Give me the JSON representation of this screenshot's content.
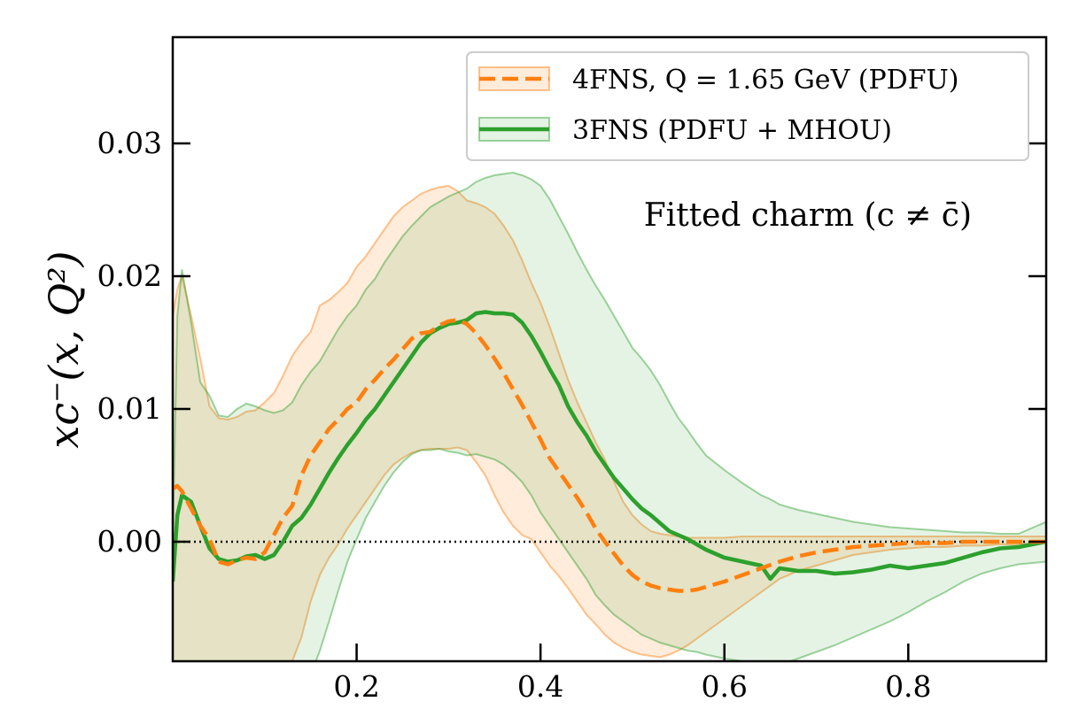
{
  "chart_data": {
    "type": "line",
    "ylabel": "xc⁻(x, Q²)",
    "annotation": "Fitted charm (c ≠ c̄)",
    "xlim": [
      0.0,
      0.95
    ],
    "ylim": [
      -0.009,
      0.038
    ],
    "xticks": [
      0.2,
      0.4,
      0.6,
      0.8
    ],
    "xtick_labels": [
      "0.2",
      "0.4",
      "0.6",
      "0.8"
    ],
    "yticks": [
      0.0,
      0.01,
      0.02,
      0.03
    ],
    "ytick_labels": [
      "0.00",
      "0.01",
      "0.02",
      "0.03"
    ],
    "legend_position": "top-right",
    "zero_line": true,
    "series": [
      {
        "name": "4FNS, Q = 1.65 GeV (PDFU)",
        "color": "#ff7f0e",
        "style": "dashed",
        "x": [
          0.0,
          0.005,
          0.01,
          0.02,
          0.03,
          0.04,
          0.05,
          0.06,
          0.07,
          0.08,
          0.09,
          0.1,
          0.11,
          0.12,
          0.13,
          0.14,
          0.15,
          0.16,
          0.17,
          0.18,
          0.19,
          0.2,
          0.21,
          0.22,
          0.23,
          0.24,
          0.25,
          0.26,
          0.27,
          0.28,
          0.29,
          0.3,
          0.31,
          0.32,
          0.33,
          0.34,
          0.35,
          0.36,
          0.37,
          0.38,
          0.39,
          0.4,
          0.41,
          0.42,
          0.43,
          0.44,
          0.45,
          0.46,
          0.47,
          0.48,
          0.49,
          0.5,
          0.51,
          0.52,
          0.53,
          0.54,
          0.55,
          0.56,
          0.57,
          0.58,
          0.6,
          0.62,
          0.64,
          0.66,
          0.68,
          0.7,
          0.72,
          0.74,
          0.76,
          0.78,
          0.8,
          0.82,
          0.84,
          0.86,
          0.88,
          0.9,
          0.92,
          0.95
        ],
        "y": [
          0.004,
          0.0042,
          0.0038,
          0.0025,
          0.0012,
          0.0002,
          -0.0015,
          -0.0017,
          -0.0014,
          -0.0012,
          -0.0013,
          -0.0008,
          0.0005,
          0.0018,
          0.0027,
          0.005,
          0.0065,
          0.0075,
          0.0085,
          0.0092,
          0.01,
          0.0105,
          0.0115,
          0.0122,
          0.013,
          0.0137,
          0.0145,
          0.0153,
          0.0157,
          0.0158,
          0.0163,
          0.0166,
          0.0167,
          0.0164,
          0.0157,
          0.0148,
          0.0138,
          0.0127,
          0.0115,
          0.0103,
          0.009,
          0.0077,
          0.0063,
          0.0053,
          0.0043,
          0.0033,
          0.0022,
          0.001,
          0.0,
          -0.0009,
          -0.0018,
          -0.0025,
          -0.003,
          -0.0033,
          -0.0035,
          -0.0036,
          -0.0037,
          -0.0037,
          -0.0036,
          -0.0034,
          -0.003,
          -0.0025,
          -0.002,
          -0.0015,
          -0.0011,
          -0.0008,
          -0.0006,
          -0.0004,
          -0.0003,
          -0.0002,
          -0.0001,
          -0.0001,
          -0.0001,
          0.0,
          0.0,
          0.0,
          0.0,
          0.0
        ],
        "band_upper": [
          0.017,
          0.019,
          0.02,
          0.017,
          0.0138,
          0.0102,
          0.0093,
          0.0092,
          0.0094,
          0.0098,
          0.0099,
          0.0105,
          0.0112,
          0.0125,
          0.014,
          0.015,
          0.0158,
          0.0178,
          0.0182,
          0.0188,
          0.0195,
          0.0207,
          0.0215,
          0.0225,
          0.0235,
          0.0245,
          0.0252,
          0.0257,
          0.0262,
          0.0265,
          0.0267,
          0.0268,
          0.0264,
          0.0257,
          0.0255,
          0.0252,
          0.0247,
          0.0238,
          0.0227,
          0.0212,
          0.0195,
          0.018,
          0.0162,
          0.0142,
          0.0122,
          0.0105,
          0.009,
          0.0075,
          0.0062,
          0.0045,
          0.003,
          0.002,
          0.0013,
          0.0008,
          0.0006,
          0.0005,
          0.0004,
          0.0003,
          0.0003,
          0.0003,
          0.0003,
          0.0004,
          0.0004,
          0.0004,
          0.0004,
          0.0004,
          0.0004,
          0.0004,
          0.0004,
          0.0004,
          0.0004,
          0.0004,
          0.0004,
          0.0004,
          0.0004,
          0.0004,
          0.0004,
          0.0004
        ],
        "band_lower": [
          -0.009,
          -0.012,
          -0.012,
          -0.012,
          -0.012,
          -0.012,
          -0.012,
          -0.012,
          -0.012,
          -0.012,
          -0.0105,
          -0.0098,
          -0.0095,
          -0.009,
          -0.009,
          -0.0072,
          -0.0045,
          -0.0025,
          -0.0012,
          -0.0002,
          0.001,
          0.002,
          0.003,
          0.004,
          0.005,
          0.0058,
          0.0063,
          0.0067,
          0.0069,
          0.007,
          0.007,
          0.007,
          0.0071,
          0.0069,
          0.006,
          0.005,
          0.0035,
          0.0022,
          0.0012,
          0.0005,
          0.0002,
          -0.0008,
          -0.0018,
          -0.0026,
          -0.0035,
          -0.0045,
          -0.0055,
          -0.0062,
          -0.007,
          -0.0076,
          -0.008,
          -0.0083,
          -0.0085,
          -0.0086,
          -0.0087,
          -0.0085,
          -0.0082,
          -0.0078,
          -0.0073,
          -0.0068,
          -0.0058,
          -0.0048,
          -0.0038,
          -0.0028,
          -0.0022,
          -0.0018,
          -0.0014,
          -0.001,
          -0.0008,
          -0.0006,
          -0.0005,
          -0.0004,
          -0.0004,
          -0.0003,
          -0.0003,
          -0.0002,
          -0.0002,
          -0.0001
        ]
      },
      {
        "name": "3FNS (PDFU + MHOU)",
        "color": "#2ca02c",
        "style": "solid",
        "x": [
          0.0,
          0.005,
          0.01,
          0.02,
          0.03,
          0.04,
          0.05,
          0.06,
          0.07,
          0.08,
          0.09,
          0.1,
          0.11,
          0.12,
          0.13,
          0.14,
          0.15,
          0.16,
          0.17,
          0.18,
          0.19,
          0.2,
          0.21,
          0.22,
          0.23,
          0.24,
          0.25,
          0.26,
          0.27,
          0.28,
          0.29,
          0.3,
          0.31,
          0.32,
          0.33,
          0.34,
          0.35,
          0.36,
          0.37,
          0.38,
          0.39,
          0.4,
          0.41,
          0.42,
          0.43,
          0.44,
          0.45,
          0.46,
          0.47,
          0.48,
          0.49,
          0.5,
          0.51,
          0.52,
          0.53,
          0.54,
          0.55,
          0.56,
          0.57,
          0.58,
          0.6,
          0.62,
          0.64,
          0.65,
          0.66,
          0.68,
          0.7,
          0.72,
          0.74,
          0.76,
          0.78,
          0.8,
          0.82,
          0.84,
          0.86,
          0.88,
          0.9,
          0.92,
          0.95
        ],
        "y": [
          -0.003,
          0.002,
          0.0035,
          0.003,
          0.0012,
          -0.0005,
          -0.0013,
          -0.0015,
          -0.0014,
          -0.0011,
          -0.001,
          -0.0013,
          -0.001,
          0.0,
          0.0012,
          0.0018,
          0.0028,
          0.004,
          0.0052,
          0.0063,
          0.0073,
          0.0082,
          0.0092,
          0.01,
          0.011,
          0.012,
          0.013,
          0.014,
          0.015,
          0.0157,
          0.0161,
          0.0164,
          0.0165,
          0.0167,
          0.0172,
          0.0173,
          0.0172,
          0.0172,
          0.0171,
          0.0165,
          0.0155,
          0.0143,
          0.013,
          0.0118,
          0.0102,
          0.009,
          0.008,
          0.0068,
          0.0058,
          0.0048,
          0.004,
          0.0032,
          0.0025,
          0.002,
          0.0014,
          0.0008,
          0.0005,
          0.0002,
          -0.0002,
          -0.0006,
          -0.0012,
          -0.0015,
          -0.0018,
          -0.0028,
          -0.002,
          -0.0022,
          -0.0022,
          -0.0024,
          -0.0023,
          -0.0021,
          -0.0018,
          -0.002,
          -0.0018,
          -0.0016,
          -0.0012,
          -0.0008,
          -0.0005,
          -0.0004,
          0.0
        ]
      }
    ],
    "band3_upper": [
      0.0,
      0.017,
      0.0205,
      0.0165,
      0.012,
      0.011,
      0.0095,
      0.0094,
      0.01,
      0.0104,
      0.0102,
      0.0099,
      0.0097,
      0.0099,
      0.0105,
      0.0118,
      0.0128,
      0.0136,
      0.0148,
      0.016,
      0.017,
      0.0178,
      0.019,
      0.0198,
      0.021,
      0.022,
      0.023,
      0.0238,
      0.0245,
      0.0252,
      0.0256,
      0.026,
      0.0263,
      0.0266,
      0.0271,
      0.0274,
      0.0276,
      0.0277,
      0.0278,
      0.0276,
      0.0273,
      0.0268,
      0.0258,
      0.0245,
      0.0232,
      0.0218,
      0.0205,
      0.0193,
      0.0182,
      0.017,
      0.0158,
      0.0146,
      0.0138,
      0.0129,
      0.0118,
      0.0105,
      0.0093,
      0.0084,
      0.0074,
      0.0065,
      0.0054,
      0.0044,
      0.0035,
      0.0032,
      0.0028,
      0.0024,
      0.0021,
      0.0018,
      0.0015,
      0.0013,
      0.0011,
      0.001,
      0.0009,
      0.0008,
      0.0007,
      0.0007,
      0.0006,
      0.0006,
      0.0015
    ],
    "band3_lower": [
      -0.009,
      -0.012,
      -0.012,
      -0.012,
      -0.012,
      -0.012,
      -0.012,
      -0.012,
      -0.012,
      -0.012,
      -0.012,
      -0.012,
      -0.012,
      -0.0115,
      -0.011,
      -0.0105,
      -0.01,
      -0.0082,
      -0.006,
      -0.0037,
      -0.0015,
      0.0002,
      0.0018,
      0.003,
      0.0042,
      0.0052,
      0.006,
      0.0066,
      0.0069,
      0.0069,
      0.007,
      0.0068,
      0.0067,
      0.0065,
      0.0066,
      0.0064,
      0.0062,
      0.0058,
      0.0052,
      0.0045,
      0.0035,
      0.0022,
      0.0012,
      0.0002,
      -0.0008,
      -0.0018,
      -0.0028,
      -0.004,
      -0.0048,
      -0.0055,
      -0.006,
      -0.0065,
      -0.007,
      -0.0073,
      -0.0076,
      -0.0078,
      -0.008,
      -0.0082,
      -0.0083,
      -0.0085,
      -0.0088,
      -0.009,
      -0.0092,
      -0.0098,
      -0.0093,
      -0.0088,
      -0.0083,
      -0.0078,
      -0.0072,
      -0.0066,
      -0.006,
      -0.0053,
      -0.0045,
      -0.0038,
      -0.003,
      -0.0024,
      -0.002,
      -0.0017,
      -0.0015
    ]
  }
}
